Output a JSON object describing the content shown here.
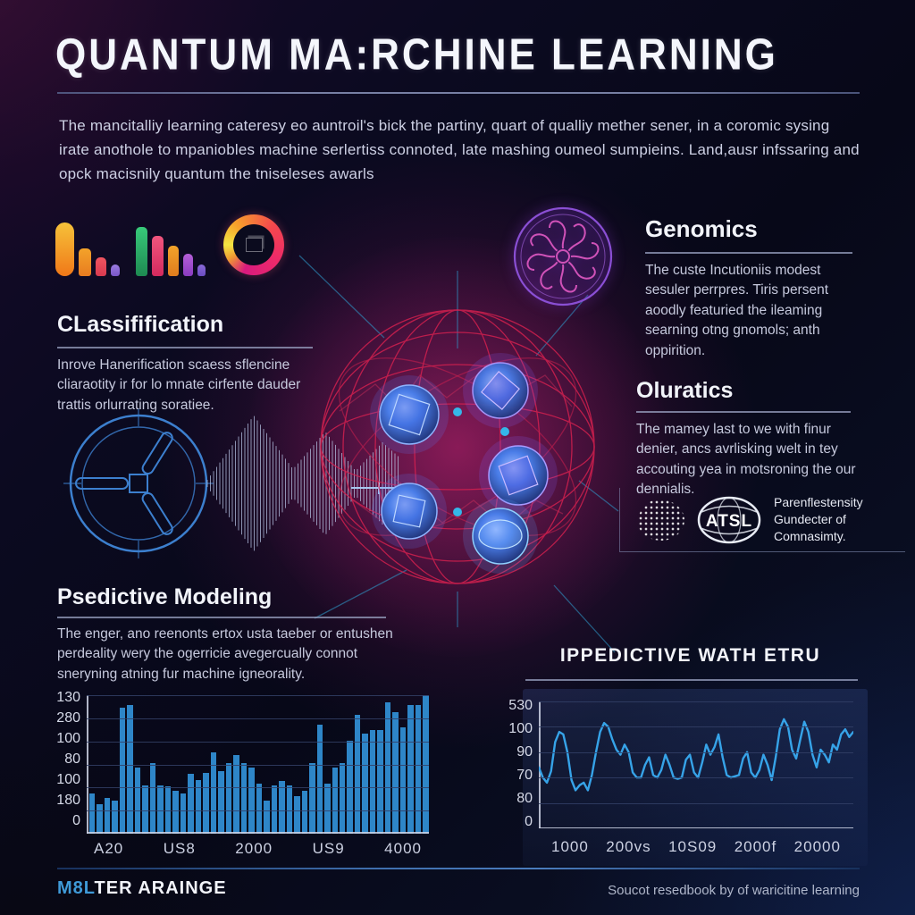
{
  "page": {
    "title": "QUANTUM MA:RCHINE LEARNING",
    "intro": "The mancitalliy learning cateresy eo auntroil's bick the partiny, quart of qualliy mether sener, in a coromic sysing irate anothole to mpaniobles machine serlertiss connoted, late mashing oumeol sumpieins. Land,ausr infssaring and opck macisnily quantum the tniseleses awarls"
  },
  "sections": {
    "classification": {
      "heading": "CLassifification",
      "body": "Inrove Hanerification scaess sflencine cliaraotity ir for lo mnate cirfente dauder trattis orlurrating soratiee."
    },
    "genomics": {
      "heading": "Genomics",
      "body": "The custe Incutioniis modest sesuler perrpres. Tiris persent aoodly featuried the ileaming searning otng gnomols; anth oppirition."
    },
    "oluratics": {
      "heading": "Oluratics",
      "body": "The mamey last to we with finur denier, ancs avrlisking welt in tey accouting yea in motsroning the our dennialis."
    },
    "predictive": {
      "heading": "Psedictive Modeling",
      "body": "The enger, ano reenonts ertox usta taeber or entushen perdeality wery the ogerricie avegercually connot sneryning atning fur machine igneorality."
    },
    "atsl": {
      "badge": "ATSL",
      "caption": "Parenflestensity Gundecter of Comnasimty."
    }
  },
  "footer": {
    "brand_prefix": "M8L",
    "brand_suffix": "TER ARAINGE",
    "source": "Soucot resedbook by of waricitine learning"
  },
  "icons": {
    "bar_chart_icon_a": "mini-bar-chart",
    "bar_chart_icon_b": "mini-bar-chart",
    "donut_chart_icon": "donut-ring-chart",
    "classification_wheel_icon": "circular-rotor-diagram",
    "waveform_graphic": "signal-waveform",
    "quantum_sphere_graphic": "red-wireframe-network-sphere",
    "genomics_icon": "purple-circular-mandala",
    "brain_icon": "dotted-brain",
    "globe_badge_icon": "globe-with-text"
  },
  "colors": {
    "background": "#080917",
    "heading": "#f2f4fa",
    "oluratics_heading": "#66a9e0",
    "body_text": "#c6c9dd",
    "sphere_wireframe": "#dd2150",
    "sphere_glow": "#e42a84",
    "node_blue": "#4a7de8",
    "connector_cyan": "#2f9fd0",
    "bar_color": "#2e86c8",
    "line_color": "#36a3e8",
    "brand_accent": "#3f9ad8"
  },
  "chart_data": [
    {
      "type": "bar",
      "title": "",
      "xlabel": "",
      "ylabel": "",
      "y_tick_labels": [
        "130",
        "280",
        "100",
        "80",
        "100",
        "180",
        "0"
      ],
      "x_tick_labels": [
        "A20",
        "US8",
        "2000",
        "US9",
        "4000"
      ],
      "bar_color": "#2e86c8",
      "grid": true,
      "value_scale": "percent_of_chart_height",
      "values": [
        29,
        21,
        26,
        24,
        91,
        93,
        48,
        35,
        51,
        35,
        34,
        31,
        29,
        43,
        39,
        44,
        59,
        45,
        51,
        57,
        51,
        48,
        36,
        24,
        35,
        38,
        35,
        27,
        31,
        51,
        79,
        36,
        48,
        51,
        67,
        86,
        72,
        75,
        75,
        95,
        88,
        77,
        93,
        93,
        100
      ]
    },
    {
      "type": "line",
      "title": "IPPEDICTIVE WATH ETRU",
      "xlabel": "",
      "ylabel": "",
      "y_tick_labels": [
        "530",
        "100",
        "90",
        "70",
        "80",
        "0"
      ],
      "x_tick_labels": [
        "1000",
        "200vs",
        "10S09",
        "2000f",
        "20000"
      ],
      "line_color": "#36a3e8",
      "grid": true,
      "value_scale": "percent_of_chart_height",
      "values": [
        48,
        40,
        36,
        45,
        68,
        76,
        74,
        60,
        38,
        30,
        34,
        36,
        30,
        42,
        60,
        76,
        83,
        80,
        70,
        62,
        58,
        66,
        60,
        44,
        40,
        40,
        50,
        56,
        42,
        40,
        46,
        58,
        50,
        40,
        39,
        40,
        54,
        58,
        44,
        40,
        52,
        66,
        58,
        64,
        74,
        56,
        42,
        40,
        41,
        42,
        55,
        60,
        44,
        40,
        46,
        58,
        50,
        38,
        56,
        78,
        86,
        80,
        62,
        55,
        70,
        84,
        76,
        58,
        48,
        62,
        58,
        52,
        66,
        62,
        74,
        78,
        72,
        76
      ]
    }
  ]
}
